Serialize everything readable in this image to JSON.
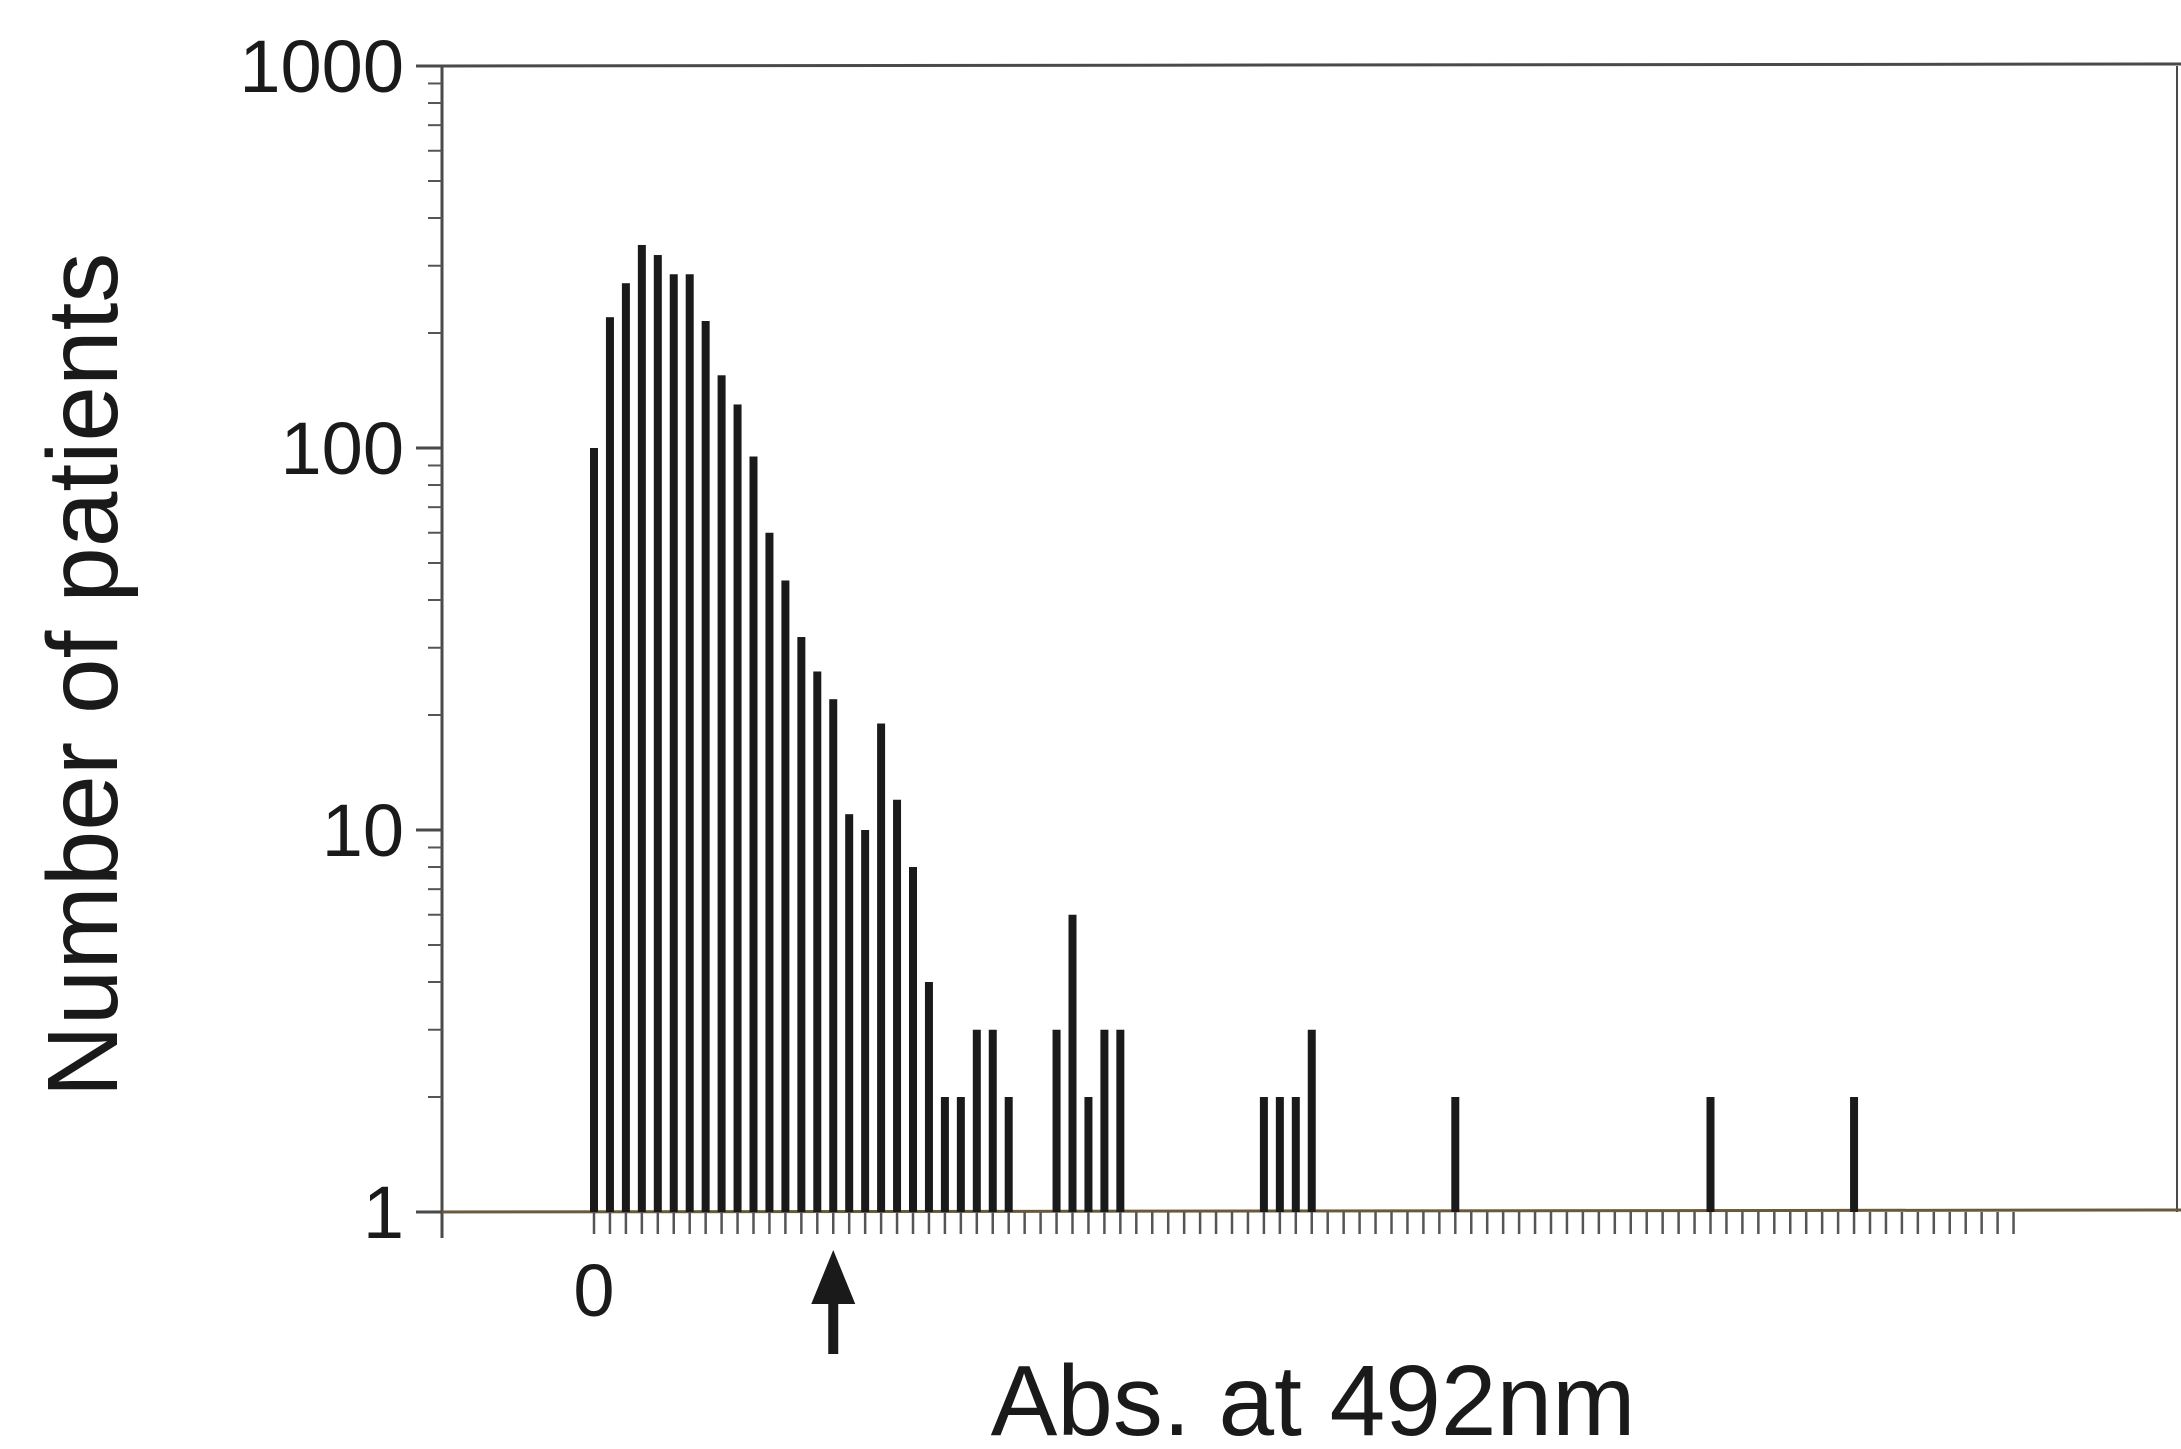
{
  "chart_data": {
    "type": "bar",
    "xlabel": "Abs. at 492nm",
    "ylabel": "Number of patients",
    "yscale": "log",
    "ylim": [
      1,
      1000
    ],
    "y_ticks": [
      {
        "value": 1,
        "label": "1"
      },
      {
        "value": 10,
        "label": "10"
      },
      {
        "value": 100,
        "label": "100"
      },
      {
        "value": 1000,
        "label": "1000"
      }
    ],
    "x_tick_label": "0",
    "cutoff_marker": {
      "bin": 15,
      "symbol": "arrow-up"
    },
    "bins": [
      {
        "bin": 0,
        "value": 100
      },
      {
        "bin": 1,
        "value": 220
      },
      {
        "bin": 2,
        "value": 270
      },
      {
        "bin": 3,
        "value": 340
      },
      {
        "bin": 4,
        "value": 320
      },
      {
        "bin": 5,
        "value": 285
      },
      {
        "bin": 6,
        "value": 285
      },
      {
        "bin": 7,
        "value": 215
      },
      {
        "bin": 8,
        "value": 155
      },
      {
        "bin": 9,
        "value": 130
      },
      {
        "bin": 10,
        "value": 95
      },
      {
        "bin": 11,
        "value": 60
      },
      {
        "bin": 12,
        "value": 45
      },
      {
        "bin": 13,
        "value": 32
      },
      {
        "bin": 14,
        "value": 26
      },
      {
        "bin": 15,
        "value": 22
      },
      {
        "bin": 16,
        "value": 11
      },
      {
        "bin": 17,
        "value": 10
      },
      {
        "bin": 18,
        "value": 19
      },
      {
        "bin": 19,
        "value": 12
      },
      {
        "bin": 20,
        "value": 8
      },
      {
        "bin": 21,
        "value": 4
      },
      {
        "bin": 22,
        "value": 2
      },
      {
        "bin": 23,
        "value": 2
      },
      {
        "bin": 24,
        "value": 3
      },
      {
        "bin": 25,
        "value": 3
      },
      {
        "bin": 26,
        "value": 2
      },
      {
        "bin": 29,
        "value": 3
      },
      {
        "bin": 30,
        "value": 6
      },
      {
        "bin": 31,
        "value": 2
      },
      {
        "bin": 32,
        "value": 3
      },
      {
        "bin": 33,
        "value": 3
      },
      {
        "bin": 42,
        "value": 2
      },
      {
        "bin": 43,
        "value": 2
      },
      {
        "bin": 44,
        "value": 2
      },
      {
        "bin": 45,
        "value": 3
      },
      {
        "bin": 54,
        "value": 2
      },
      {
        "bin": 70,
        "value": 2
      },
      {
        "bin": 79,
        "value": 2
      }
    ],
    "bin_tick_count": 90,
    "grid": false,
    "legend": "none",
    "colors": {
      "bar": "#1a1a1a",
      "axis": "#4a4a4a",
      "baseline": "#6a5a3a",
      "ticks": "#555555"
    }
  }
}
